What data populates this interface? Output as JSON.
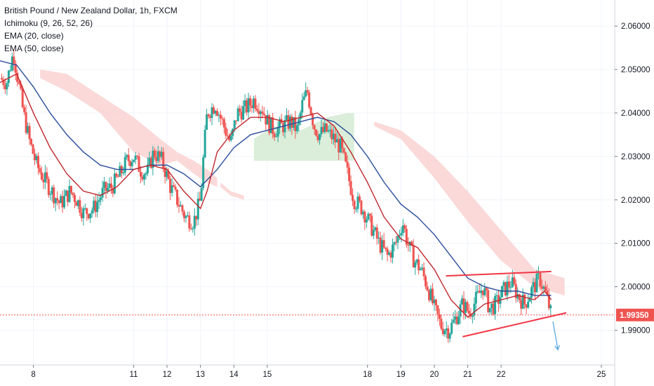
{
  "legend": {
    "title": "British Pound / New Zealand Dollar, 1h, FXCM",
    "ichimoku": "Ichimoku (9, 26, 52, 26)",
    "ema20": "EMA (20, close)",
    "ema50": "EMA (50, close)"
  },
  "colors": {
    "up": "#26a69a",
    "down": "#ef5350",
    "ema20": "#c0272d",
    "ema50": "#2a4d9b",
    "cloud_bear": "#fbd5d5",
    "cloud_bull": "#d6ecd6",
    "annotation": "#f23645",
    "arrow": "#4fa3e0",
    "price_line": "#ef5350",
    "grid": "#f0f3fa"
  },
  "chart_data": {
    "type": "candlestick",
    "ylim": [
      1.982,
      2.066
    ],
    "xlim": [
      7.0,
      25.4
    ],
    "y_ticks": [
      "2.06000",
      "2.05000",
      "2.04000",
      "2.03000",
      "2.02000",
      "2.01000",
      "2.00000",
      "1.99000"
    ],
    "y_tick_values": [
      2.06,
      2.05,
      2.04,
      2.03,
      2.02,
      2.01,
      2.0,
      1.99
    ],
    "x_ticks": [
      "8",
      "11",
      "12",
      "13",
      "14",
      "15",
      "18",
      "19",
      "20",
      "21",
      "22",
      "25"
    ],
    "x_tick_values": [
      8,
      11,
      12,
      13,
      14,
      15,
      18,
      19,
      20,
      21,
      22,
      25
    ],
    "current_price": {
      "label": "1.99350",
      "value": 1.9935
    },
    "price_path": [
      [
        7.0,
        2.048
      ],
      [
        7.2,
        2.047
      ],
      [
        7.4,
        2.054
      ],
      [
        7.55,
        2.047
      ],
      [
        7.7,
        2.04
      ],
      [
        7.9,
        2.033
      ],
      [
        8.1,
        2.028
      ],
      [
        8.3,
        2.025
      ],
      [
        8.55,
        2.022
      ],
      [
        8.8,
        2.019
      ],
      [
        9.1,
        2.022
      ],
      [
        9.3,
        2.02
      ],
      [
        9.5,
        2.017
      ],
      [
        9.8,
        2.018
      ],
      [
        10.1,
        2.022
      ],
      [
        10.35,
        2.023
      ],
      [
        10.6,
        2.026
      ],
      [
        10.8,
        2.029
      ],
      [
        11.0,
        2.03
      ],
      [
        11.2,
        2.027
      ],
      [
        11.4,
        2.026
      ],
      [
        11.6,
        2.031
      ],
      [
        11.85,
        2.029
      ],
      [
        12.1,
        2.023
      ],
      [
        12.3,
        2.02
      ],
      [
        12.55,
        2.016
      ],
      [
        12.8,
        2.015
      ],
      [
        13.0,
        2.02
      ],
      [
        13.1,
        2.031
      ],
      [
        13.2,
        2.04
      ],
      [
        13.45,
        2.042
      ],
      [
        13.7,
        2.037
      ],
      [
        13.9,
        2.033
      ],
      [
        14.1,
        2.04
      ],
      [
        14.35,
        2.041
      ],
      [
        14.6,
        2.043
      ],
      [
        14.85,
        2.041
      ],
      [
        15.0,
        2.038
      ],
      [
        15.2,
        2.036
      ],
      [
        15.45,
        2.037
      ],
      [
        15.7,
        2.038
      ],
      [
        15.9,
        2.036
      ],
      [
        16.05,
        2.042
      ],
      [
        16.2,
        2.045
      ],
      [
        16.4,
        2.037
      ],
      [
        16.55,
        2.035
      ],
      [
        16.75,
        2.036
      ],
      [
        17.0,
        2.034
      ],
      [
        17.2,
        2.032
      ],
      [
        17.4,
        2.026
      ],
      [
        17.6,
        2.02
      ],
      [
        17.85,
        2.018
      ],
      [
        18.1,
        2.014
      ],
      [
        18.35,
        2.01
      ],
      [
        18.6,
        2.007
      ],
      [
        18.85,
        2.01
      ],
      [
        19.05,
        2.015
      ],
      [
        19.2,
        2.01
      ],
      [
        19.4,
        2.006
      ],
      [
        19.6,
        2.004
      ],
      [
        19.8,
        2.0
      ],
      [
        20.0,
        1.995
      ],
      [
        20.2,
        1.991
      ],
      [
        20.45,
        1.99
      ],
      [
        20.65,
        1.993
      ],
      [
        20.85,
        1.996
      ],
      [
        21.05,
        1.994
      ],
      [
        21.25,
        1.997
      ],
      [
        21.45,
        2.0
      ],
      [
        21.65,
        1.995
      ],
      [
        21.85,
        1.996
      ],
      [
        22.05,
        1.999
      ],
      [
        22.3,
        2.001
      ],
      [
        22.5,
        1.998
      ],
      [
        22.7,
        1.996
      ],
      [
        22.9,
        1.999
      ],
      [
        23.15,
        2.002
      ],
      [
        23.35,
        1.998
      ],
      [
        23.5,
        1.9935
      ]
    ],
    "ema20": [
      [
        7.0,
        2.047
      ],
      [
        7.5,
        2.049
      ],
      [
        8.0,
        2.04
      ],
      [
        8.5,
        2.032
      ],
      [
        9.0,
        2.026
      ],
      [
        9.5,
        2.022
      ],
      [
        10.0,
        2.021
      ],
      [
        10.5,
        2.023
      ],
      [
        11.0,
        2.027
      ],
      [
        11.5,
        2.028
      ],
      [
        12.0,
        2.027
      ],
      [
        12.5,
        2.022
      ],
      [
        13.0,
        2.018
      ],
      [
        13.2,
        2.022
      ],
      [
        13.5,
        2.031
      ],
      [
        14.0,
        2.036
      ],
      [
        14.5,
        2.039
      ],
      [
        15.0,
        2.039
      ],
      [
        15.5,
        2.038
      ],
      [
        16.0,
        2.039
      ],
      [
        16.5,
        2.04
      ],
      [
        17.0,
        2.037
      ],
      [
        17.5,
        2.031
      ],
      [
        18.0,
        2.024
      ],
      [
        18.5,
        2.016
      ],
      [
        19.0,
        2.011
      ],
      [
        19.5,
        2.009
      ],
      [
        20.0,
        2.004
      ],
      [
        20.5,
        1.997
      ],
      [
        21.0,
        1.993
      ],
      [
        21.5,
        1.996
      ],
      [
        22.0,
        1.997
      ],
      [
        22.5,
        1.998
      ],
      [
        23.0,
        1.997
      ],
      [
        23.3,
        1.999
      ],
      [
        23.5,
        1.997
      ]
    ],
    "ema50": [
      [
        7.0,
        2.052
      ],
      [
        7.5,
        2.051
      ],
      [
        8.0,
        2.046
      ],
      [
        8.5,
        2.04
      ],
      [
        9.0,
        2.035
      ],
      [
        9.5,
        2.031
      ],
      [
        10.0,
        2.028
      ],
      [
        10.5,
        2.027
      ],
      [
        11.0,
        2.027
      ],
      [
        11.5,
        2.028
      ],
      [
        12.0,
        2.028
      ],
      [
        12.5,
        2.026
      ],
      [
        13.0,
        2.023
      ],
      [
        13.5,
        2.027
      ],
      [
        14.0,
        2.032
      ],
      [
        14.5,
        2.035
      ],
      [
        15.0,
        2.036
      ],
      [
        15.5,
        2.037
      ],
      [
        16.0,
        2.038
      ],
      [
        16.5,
        2.039
      ],
      [
        17.0,
        2.038
      ],
      [
        17.5,
        2.035
      ],
      [
        18.0,
        2.03
      ],
      [
        18.5,
        2.024
      ],
      [
        19.0,
        2.019
      ],
      [
        19.5,
        2.016
      ],
      [
        20.0,
        2.012
      ],
      [
        20.5,
        2.007
      ],
      [
        21.0,
        2.002
      ],
      [
        21.5,
        2.0
      ],
      [
        22.0,
        1.999
      ],
      [
        22.5,
        1.999
      ],
      [
        23.0,
        1.998
      ],
      [
        23.5,
        1.998
      ]
    ],
    "cloud_bear": [
      {
        "x": [
          8.2,
          9.0,
          10.0,
          11.0,
          11.8,
          12.3
        ],
        "top": [
          2.05,
          2.049,
          2.044,
          2.039,
          2.034,
          2.031
        ],
        "bottom": [
          2.048,
          2.045,
          2.04,
          2.031,
          2.028,
          2.029
        ]
      },
      {
        "x": [
          12.3,
          12.8,
          13.2,
          13.5
        ],
        "top": [
          2.031,
          2.029,
          2.027,
          2.025
        ],
        "bottom": [
          2.029,
          2.026,
          2.024,
          2.023
        ]
      },
      {
        "x": [
          13.6,
          13.9,
          14.3
        ],
        "top": [
          2.024,
          2.022,
          2.021
        ],
        "bottom": [
          2.023,
          2.021,
          2.02
        ]
      },
      {
        "x": [
          18.2,
          19.0,
          20.0,
          21.0,
          22.0,
          23.0,
          23.9
        ],
        "top": [
          2.038,
          2.036,
          2.03,
          2.022,
          2.013,
          2.004,
          2.002
        ],
        "bottom": [
          2.037,
          2.034,
          2.025,
          2.015,
          2.006,
          2.0,
          1.998
        ]
      }
    ],
    "cloud_bull": [
      {
        "x": [
          14.6,
          15.2,
          16.0,
          16.8,
          17.4,
          17.6
        ],
        "top": [
          2.034,
          2.037,
          2.036,
          2.039,
          2.04,
          2.04
        ],
        "bottom": [
          2.029,
          2.029,
          2.029,
          2.029,
          2.029,
          2.029
        ]
      }
    ],
    "annotations": {
      "triangle_upper": [
        [
          20.35,
          2.0025
        ],
        [
          23.5,
          2.0035
        ]
      ],
      "triangle_lower": [
        [
          20.85,
          1.9885
        ],
        [
          23.95,
          1.994
        ]
      ],
      "arrow": [
        [
          23.55,
          1.992
        ],
        [
          23.7,
          1.9855
        ]
      ]
    }
  }
}
